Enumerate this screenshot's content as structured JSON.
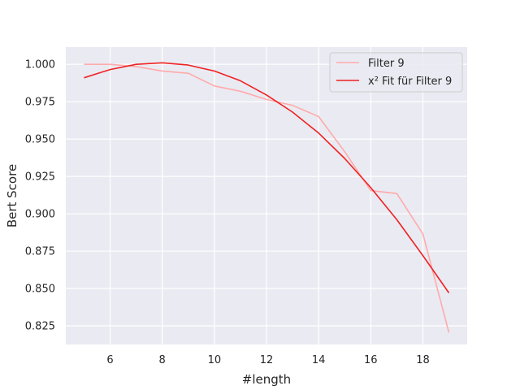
{
  "chart_data": {
    "type": "line",
    "title": "",
    "xlabel": "#length",
    "ylabel": "Bert Score",
    "xlim": [
      4.3,
      19.7
    ],
    "ylim": [
      0.8125,
      1.0115
    ],
    "xticks": [
      6,
      8,
      10,
      12,
      14,
      16,
      18
    ],
    "yticks": [
      0.825,
      0.85,
      0.875,
      0.9,
      0.925,
      0.95,
      0.975,
      1.0
    ],
    "ytick_labels": [
      "0.825",
      "0.850",
      "0.875",
      "0.900",
      "0.925",
      "0.950",
      "0.975",
      "1.000"
    ],
    "grid": true,
    "legend_position": "top-right",
    "background": "#eaeaf2",
    "series": [
      {
        "name": "Filter 9",
        "color": "#ffaaaa",
        "x": [
          5,
          6,
          7,
          8,
          9,
          10,
          11,
          12,
          13,
          14,
          15,
          16,
          17,
          18,
          19
        ],
        "y": [
          1.0,
          1.0,
          0.9985,
          0.9955,
          0.994,
          0.9855,
          0.982,
          0.9765,
          0.9725,
          0.965,
          0.9415,
          0.9155,
          0.9135,
          0.8865,
          0.8205
        ]
      },
      {
        "name": "x² Fit für Filter 9",
        "color": "#ee2222",
        "x": [
          5,
          6,
          7,
          8,
          9,
          10,
          11,
          12,
          13,
          14,
          15,
          16,
          17,
          18,
          19
        ],
        "y": [
          0.991,
          0.9965,
          1.0,
          1.001,
          0.9995,
          0.9955,
          0.989,
          0.9795,
          0.968,
          0.954,
          0.937,
          0.9175,
          0.896,
          0.872,
          0.847
        ]
      }
    ]
  }
}
